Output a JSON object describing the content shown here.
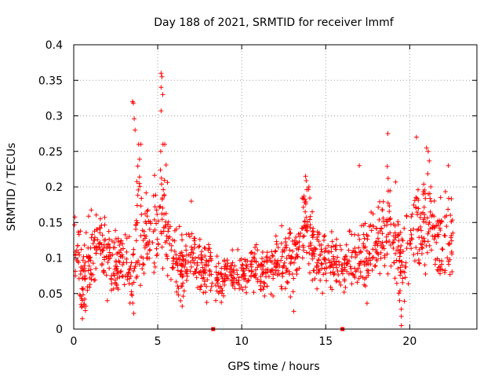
{
  "chart_data": {
    "type": "scatter",
    "title": "Day 188 of 2021, SRMTID for receiver lmmf",
    "xlabel": "GPS time / hours",
    "ylabel": "SRMTID / TECUs",
    "xlim": [
      0,
      24
    ],
    "ylim": [
      0,
      0.4
    ],
    "x_ticks": [
      0,
      5,
      10,
      15,
      20
    ],
    "x_tick_labels": [
      "0",
      "5",
      "10",
      "15",
      "20"
    ],
    "y_ticks": [
      0,
      0.05,
      0.1,
      0.15,
      0.2,
      0.25,
      0.3,
      0.35,
      0.4
    ],
    "y_tick_labels": [
      "0",
      "0.05",
      "0.1",
      "0.15",
      "0.2",
      "0.25",
      "0.3",
      "0.35",
      "0.4"
    ],
    "grid": true,
    "marker": "+",
    "color": "#ff0000",
    "series": [
      {
        "name": "SRMTID",
        "envelope": {
          "x": [
            0,
            0.3,
            0.5,
            1.0,
            1.5,
            2.0,
            2.5,
            3.0,
            3.5,
            3.8,
            4.2,
            4.6,
            5.0,
            5.3,
            5.7,
            6.0,
            6.5,
            7.0,
            7.5,
            8.0,
            8.5,
            9.0,
            9.5,
            10.0,
            10.5,
            11.0,
            11.5,
            12.0,
            12.5,
            13.0,
            13.5,
            13.8,
            14.2,
            14.6,
            15.0,
            15.5,
            16.0,
            16.5,
            17.0,
            17.5,
            18.0,
            18.5,
            18.8,
            19.2,
            19.6,
            20.0,
            20.3,
            20.6,
            21.0,
            21.4,
            21.8,
            22.2,
            22.6
          ],
          "y_mid": [
            0.12,
            0.11,
            0.06,
            0.1,
            0.12,
            0.1,
            0.09,
            0.1,
            0.08,
            0.16,
            0.13,
            0.14,
            0.16,
            0.19,
            0.12,
            0.1,
            0.09,
            0.1,
            0.08,
            0.09,
            0.07,
            0.07,
            0.08,
            0.08,
            0.08,
            0.08,
            0.08,
            0.09,
            0.09,
            0.1,
            0.13,
            0.15,
            0.12,
            0.1,
            0.09,
            0.09,
            0.09,
            0.09,
            0.1,
            0.1,
            0.12,
            0.14,
            0.15,
            0.12,
            0.09,
            0.13,
            0.15,
            0.14,
            0.16,
            0.14,
            0.12,
            0.13,
            0.12
          ],
          "spread": [
            0.03,
            0.03,
            0.03,
            0.03,
            0.03,
            0.025,
            0.025,
            0.03,
            0.03,
            0.06,
            0.035,
            0.04,
            0.05,
            0.06,
            0.04,
            0.035,
            0.03,
            0.03,
            0.025,
            0.03,
            0.025,
            0.02,
            0.02,
            0.02,
            0.02,
            0.02,
            0.02,
            0.025,
            0.025,
            0.03,
            0.035,
            0.04,
            0.03,
            0.03,
            0.025,
            0.025,
            0.025,
            0.025,
            0.03,
            0.03,
            0.035,
            0.045,
            0.05,
            0.04,
            0.035,
            0.04,
            0.045,
            0.04,
            0.045,
            0.04,
            0.035,
            0.035,
            0.03
          ]
        },
        "n_points": 1400,
        "outliers": [
          {
            "x": 3.5,
            "y": 0.32
          },
          {
            "x": 3.55,
            "y": 0.318
          },
          {
            "x": 3.6,
            "y": 0.296
          },
          {
            "x": 3.65,
            "y": 0.28
          },
          {
            "x": 5.2,
            "y": 0.36
          },
          {
            "x": 5.25,
            "y": 0.355
          },
          {
            "x": 5.2,
            "y": 0.34
          },
          {
            "x": 5.3,
            "y": 0.33
          },
          {
            "x": 5.2,
            "y": 0.307
          },
          {
            "x": 4.0,
            "y": 0.26
          },
          {
            "x": 18.7,
            "y": 0.275
          },
          {
            "x": 20.4,
            "y": 0.27
          },
          {
            "x": 21.0,
            "y": 0.255
          },
          {
            "x": 21.1,
            "y": 0.25
          },
          {
            "x": 22.3,
            "y": 0.23
          },
          {
            "x": 17.0,
            "y": 0.23
          },
          {
            "x": 13.8,
            "y": 0.215
          },
          {
            "x": 14.0,
            "y": 0.2
          },
          {
            "x": 7.0,
            "y": 0.18
          },
          {
            "x": 19.5,
            "y": 0.005
          },
          {
            "x": 19.5,
            "y": 0.018
          },
          {
            "x": 19.5,
            "y": 0.028
          },
          {
            "x": 19.4,
            "y": 0.04
          },
          {
            "x": 13.1,
            "y": 0.025
          },
          {
            "x": 0.5,
            "y": 0.032
          },
          {
            "x": 0.6,
            "y": 0.035
          },
          {
            "x": 2.0,
            "y": 0.04
          }
        ],
        "zero_markers": [
          {
            "x": 8.3,
            "y": 0
          },
          {
            "x": 16.0,
            "y": 0
          }
        ]
      }
    ]
  }
}
